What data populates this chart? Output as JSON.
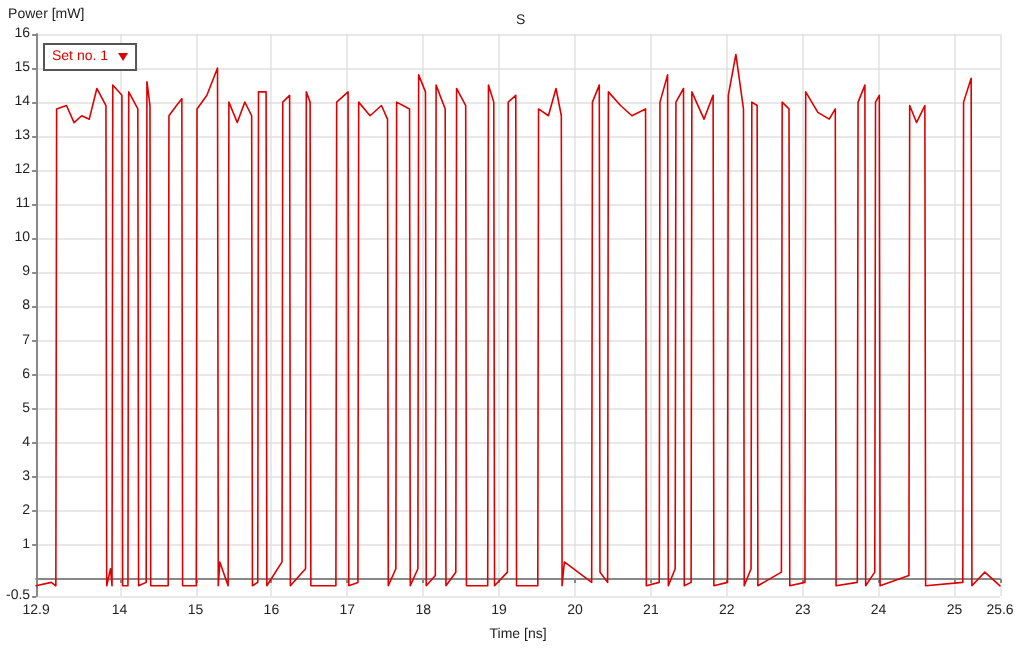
{
  "chart_data": {
    "type": "line",
    "title": "S",
    "xlabel": "Time [ns]",
    "ylabel": "Power [mW]",
    "xlim": [
      12.9,
      25.6
    ],
    "xticks": [
      12.9,
      14,
      15,
      16,
      17,
      18,
      19,
      20,
      21,
      22,
      23,
      24,
      25,
      25.6
    ],
    "ylim": [
      -0.5,
      16
    ],
    "yticks": [
      -0.5,
      1,
      2,
      3,
      4,
      5,
      6,
      7,
      8,
      9,
      10,
      11,
      12,
      13,
      14,
      15,
      16
    ],
    "grid": true,
    "legend": "top left",
    "marker": "none",
    "line_style": "solid",
    "series": [
      {
        "name": "Set no. 1",
        "color": "#dd0000",
        "x": [
          12.9,
          13.1,
          13.16,
          13.17,
          13.3,
          13.4,
          13.5,
          13.6,
          13.7,
          13.82,
          13.83,
          13.88,
          13.9,
          13.91,
          14.03,
          14.04,
          14.11,
          14.12,
          14.24,
          14.25,
          14.35,
          14.36,
          14.4,
          14.41,
          14.64,
          14.65,
          14.75,
          14.82,
          14.83,
          15.01,
          15.02,
          15.15,
          15.29,
          15.3,
          15.32,
          15.43,
          15.44,
          15.55,
          15.65,
          15.74,
          15.75,
          15.82,
          15.83,
          15.93,
          15.94,
          16.14,
          16.15,
          16.24,
          16.25,
          16.45,
          16.46,
          16.51,
          16.52,
          16.85,
          16.86,
          17.01,
          17.02,
          17.14,
          17.15,
          17.3,
          17.45,
          17.53,
          17.54,
          17.64,
          17.65,
          17.82,
          17.83,
          17.93,
          17.94,
          18.03,
          18.04,
          18.16,
          18.17,
          18.29,
          18.3,
          18.43,
          18.44,
          18.56,
          18.57,
          18.85,
          18.86,
          18.93,
          18.94,
          19.11,
          19.12,
          19.22,
          19.23,
          19.51,
          19.52,
          19.65,
          19.75,
          19.82,
          19.83,
          19.86,
          20.22,
          20.23,
          20.32,
          20.33,
          20.43,
          20.44,
          20.6,
          20.75,
          20.93,
          20.94,
          21.11,
          21.12,
          21.22,
          21.23,
          21.32,
          21.33,
          21.43,
          21.44,
          21.53,
          21.54,
          21.7,
          21.82,
          21.83,
          22.01,
          22.02,
          22.12,
          22.22,
          22.23,
          22.32,
          22.33,
          22.4,
          22.41,
          22.72,
          22.73,
          22.82,
          22.83,
          23.03,
          23.04,
          23.2,
          23.35,
          23.43,
          23.44,
          23.72,
          23.73,
          23.82,
          23.83,
          23.95,
          23.96,
          24.01,
          24.02,
          24.4,
          24.41,
          24.5,
          24.61,
          24.62,
          25.11,
          25.12,
          25.22,
          25.23,
          25.4,
          25.6
        ],
        "values": [
          -0.2,
          -0.1,
          -0.2,
          13.8,
          13.9,
          13.4,
          13.6,
          13.5,
          14.4,
          13.9,
          -0.2,
          0.3,
          -0.2,
          14.5,
          14.2,
          -0.2,
          -0.2,
          14.3,
          13.8,
          -0.2,
          -0.1,
          14.6,
          13.9,
          -0.2,
          -0.2,
          13.6,
          13.9,
          14.1,
          -0.2,
          -0.2,
          13.8,
          14.2,
          15.0,
          -0.2,
          0.5,
          -0.2,
          14.0,
          13.4,
          14.0,
          13.6,
          -0.2,
          -0.1,
          14.3,
          14.3,
          -0.2,
          0.5,
          14.0,
          14.2,
          -0.2,
          0.3,
          14.3,
          14.0,
          -0.2,
          -0.2,
          14.0,
          14.3,
          -0.2,
          -0.1,
          14.0,
          13.6,
          13.9,
          13.5,
          -0.2,
          0.3,
          14.0,
          13.8,
          -0.2,
          0.3,
          14.8,
          14.3,
          -0.2,
          0.1,
          14.5,
          13.8,
          -0.2,
          0.2,
          14.4,
          13.9,
          -0.2,
          -0.2,
          14.5,
          14.0,
          -0.2,
          0.2,
          14.0,
          14.2,
          -0.2,
          -0.2,
          13.8,
          13.6,
          14.4,
          13.6,
          -0.2,
          0.5,
          -0.1,
          14.0,
          14.5,
          0.2,
          -0.1,
          14.3,
          13.9,
          13.6,
          13.8,
          -0.2,
          -0.1,
          14.0,
          14.8,
          -0.2,
          0.3,
          14.0,
          14.4,
          -0.2,
          -0.1,
          14.3,
          13.5,
          14.2,
          -0.2,
          -0.1,
          14.2,
          15.4,
          13.8,
          -0.2,
          0.3,
          14.0,
          13.9,
          -0.2,
          0.2,
          14.0,
          13.8,
          -0.2,
          -0.1,
          14.3,
          13.7,
          13.5,
          13.8,
          -0.2,
          -0.1,
          14.0,
          14.5,
          -0.2,
          0.2,
          14.0,
          14.2,
          -0.2,
          0.1,
          13.9,
          13.4,
          13.9,
          -0.2,
          -0.1,
          14.0,
          14.7,
          -0.2,
          0.2,
          -0.2
        ]
      }
    ]
  }
}
